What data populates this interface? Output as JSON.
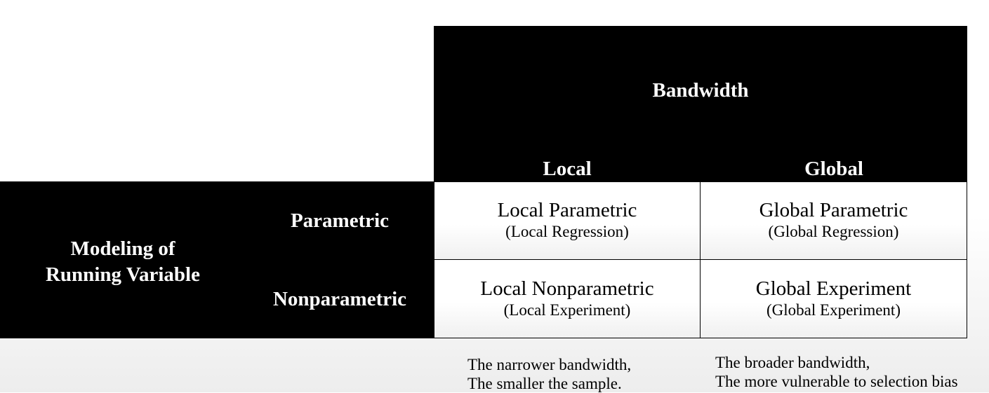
{
  "column_header": {
    "title": "Bandwidth",
    "local": "Local",
    "global": "Global"
  },
  "row_header": {
    "title_line1": "Modeling of",
    "title_line2": "Running Variable",
    "parametric": "Parametric",
    "nonparametric": "Nonparametric"
  },
  "cells": {
    "local_parametric": {
      "main": "Local Parametric",
      "sub": "(Local Regression)"
    },
    "global_parametric": {
      "main": "Global Parametric",
      "sub": "(Global Regression)"
    },
    "local_nonparametric": {
      "main": "Local Nonparametric",
      "sub": "(Local Experiment)"
    },
    "global_experiment": {
      "main": "Global Experiment",
      "sub": "(Global Experiment)"
    }
  },
  "notes": {
    "local": [
      "The narrower bandwidth,",
      "The smaller the sample."
    ],
    "global": [
      "The broader bandwidth,",
      "The more vulnerable to selection bias"
    ]
  },
  "colors": {
    "header_bg": "#000000",
    "header_text": "#ffffff",
    "cell_bg": "#ffffff"
  }
}
